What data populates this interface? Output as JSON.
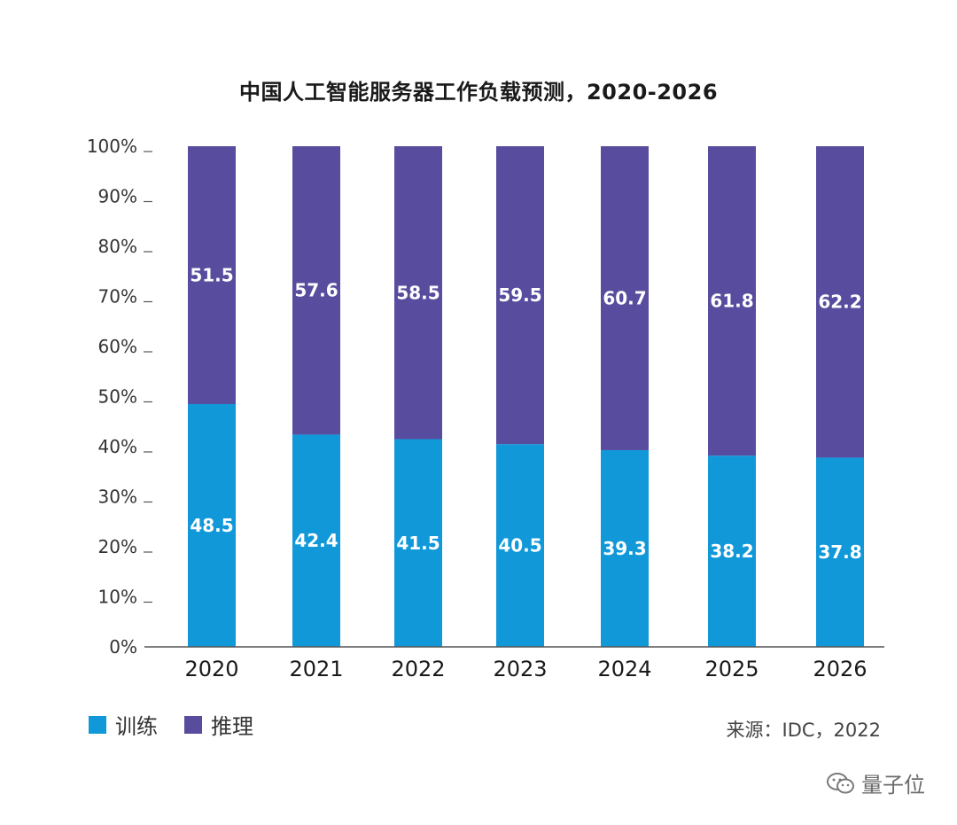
{
  "chart_data": {
    "type": "bar",
    "stacked": true,
    "title": "中国人工智能服务器工作负载预测，2020-2026",
    "categories": [
      "2020",
      "2021",
      "2022",
      "2023",
      "2024",
      "2025",
      "2026"
    ],
    "series": [
      {
        "name": "训练",
        "color": "#1198d9",
        "values": [
          48.5,
          42.4,
          41.5,
          40.5,
          39.3,
          38.2,
          37.8
        ]
      },
      {
        "name": "推理",
        "color": "#574c9e",
        "values": [
          51.5,
          57.6,
          58.5,
          59.5,
          60.7,
          61.8,
          62.2
        ]
      }
    ],
    "yticks": [
      "0%",
      "10%",
      "20%",
      "30%",
      "40%",
      "50%",
      "60%",
      "70%",
      "80%",
      "90%",
      "100%"
    ],
    "ylim": [
      0,
      100
    ],
    "legend_position": "bottom-left",
    "source": "来源：IDC，2022"
  },
  "watermark": "量子位"
}
